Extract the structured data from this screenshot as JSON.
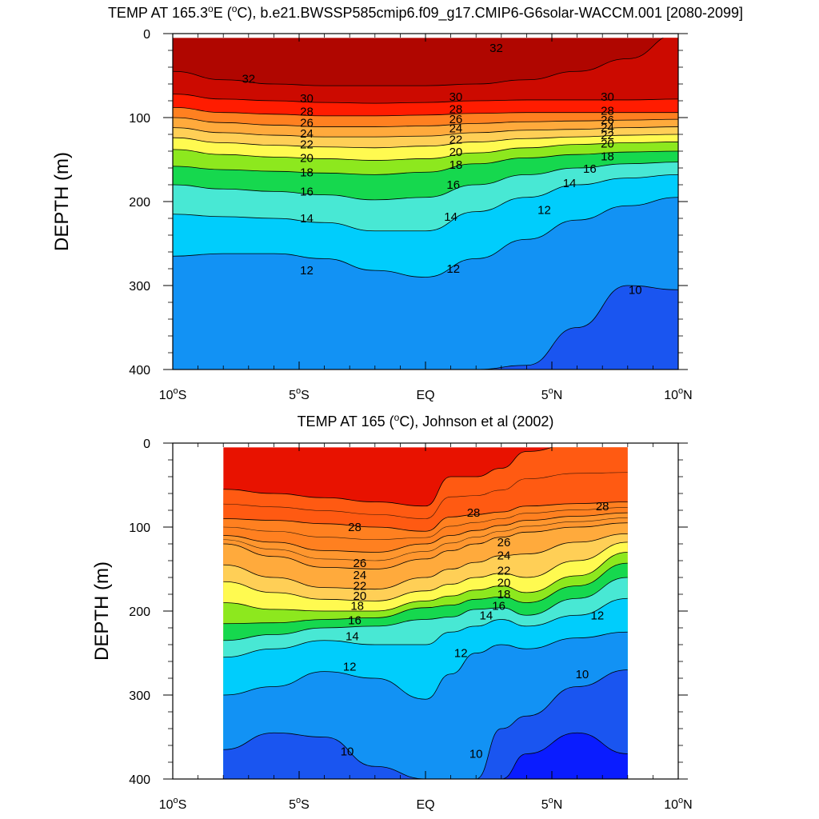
{
  "chart_data": [
    {
      "type": "contour",
      "title_prefix": "TEMP AT 165.3",
      "title_sup": "o",
      "title_suffix": "E (",
      "title_sup2": "o",
      "title_rest": "C), b.e21.BWSSP585cmip6.f09_g17.CMIP6-G6solar-WACCM.001 [2080-2099]",
      "ylabel": "DEPTH (m)",
      "xlabel": "",
      "x_ticks": [
        "10°S",
        "5°S",
        "EQ",
        "5°N",
        "10°N"
      ],
      "x_range": [
        -10,
        10
      ],
      "y_ticks": [
        "0",
        "100",
        "200",
        "300",
        "400"
      ],
      "y_range": [
        0,
        400
      ],
      "y_reversed": true,
      "data_x_range": [
        -10,
        10
      ],
      "data_y_range": [
        5,
        400
      ],
      "x": [
        -10,
        -8,
        -6,
        -4,
        -2,
        0,
        2,
        4,
        6,
        8,
        10
      ],
      "isotherms": [
        {
          "level": 32,
          "depth": [
            45,
            55,
            60,
            62,
            62,
            62,
            60,
            55,
            45,
            30,
            0
          ]
        },
        {
          "level": 30,
          "depth": [
            72,
            78,
            80,
            82,
            83,
            82,
            80,
            79,
            79,
            79,
            78
          ]
        },
        {
          "level": 28,
          "depth": [
            88,
            94,
            96,
            98,
            98,
            97,
            95,
            94,
            94,
            94,
            94
          ]
        },
        {
          "level": 26,
          "depth": [
            100,
            106,
            109,
            111,
            111,
            110,
            107,
            105,
            104,
            103,
            102
          ]
        },
        {
          "level": 24,
          "depth": [
            112,
            118,
            121,
            123,
            123,
            122,
            118,
            115,
            114,
            112,
            111
          ]
        },
        {
          "level": 22,
          "depth": [
            124,
            130,
            133,
            135,
            136,
            134,
            129,
            125,
            123,
            121,
            120
          ]
        },
        {
          "level": 20,
          "depth": [
            138,
            144,
            147,
            149,
            151,
            149,
            142,
            136,
            132,
            130,
            129
          ]
        },
        {
          "level": 18,
          "depth": [
            158,
            162,
            164,
            166,
            168,
            165,
            155,
            148,
            144,
            141,
            140
          ]
        },
        {
          "level": 16,
          "depth": [
            180,
            185,
            188,
            192,
            198,
            195,
            180,
            168,
            160,
            155,
            153
          ]
        },
        {
          "level": 14,
          "depth": [
            215,
            218,
            220,
            225,
            235,
            235,
            212,
            195,
            180,
            172,
            168
          ]
        },
        {
          "level": 12,
          "depth": [
            265,
            262,
            262,
            268,
            282,
            290,
            268,
            245,
            222,
            205,
            195
          ]
        },
        {
          "level": 10,
          "depth": [
            400,
            400,
            400,
            400,
            400,
            400,
            400,
            395,
            350,
            300,
            305
          ]
        }
      ],
      "contour_labels": [
        {
          "text": "32",
          "x": -7,
          "y": 54
        },
        {
          "text": "32",
          "x": 2.8,
          "y": 17
        },
        {
          "text": "30",
          "x": -4.7,
          "y": 77
        },
        {
          "text": "30",
          "x": 1.2,
          "y": 75
        },
        {
          "text": "30",
          "x": 7.2,
          "y": 75
        },
        {
          "text": "28",
          "x": -4.7,
          "y": 93
        },
        {
          "text": "28",
          "x": 1.2,
          "y": 90
        },
        {
          "text": "28",
          "x": 7.2,
          "y": 92
        },
        {
          "text": "26",
          "x": -4.7,
          "y": 106
        },
        {
          "text": "26",
          "x": 1.2,
          "y": 102
        },
        {
          "text": "26",
          "x": 7.2,
          "y": 103
        },
        {
          "text": "24",
          "x": -4.7,
          "y": 119
        },
        {
          "text": "24",
          "x": 1.2,
          "y": 113
        },
        {
          "text": "24",
          "x": 7.2,
          "y": 112
        },
        {
          "text": "22",
          "x": -4.7,
          "y": 132
        },
        {
          "text": "22",
          "x": 1.2,
          "y": 126
        },
        {
          "text": "22",
          "x": 7.2,
          "y": 121
        },
        {
          "text": "20",
          "x": -4.7,
          "y": 148
        },
        {
          "text": "20",
          "x": 1.2,
          "y": 141
        },
        {
          "text": "20",
          "x": 7.2,
          "y": 131
        },
        {
          "text": "18",
          "x": -4.7,
          "y": 165
        },
        {
          "text": "18",
          "x": 1.2,
          "y": 156
        },
        {
          "text": "18",
          "x": 7.2,
          "y": 146
        },
        {
          "text": "16",
          "x": -4.7,
          "y": 188
        },
        {
          "text": "16",
          "x": 1.1,
          "y": 180
        },
        {
          "text": "16",
          "x": 6.5,
          "y": 161
        },
        {
          "text": "14",
          "x": -4.7,
          "y": 220
        },
        {
          "text": "14",
          "x": 1.0,
          "y": 218
        },
        {
          "text": "14",
          "x": 5.7,
          "y": 178
        },
        {
          "text": "12",
          "x": -4.7,
          "y": 282
        },
        {
          "text": "12",
          "x": 1.1,
          "y": 280
        },
        {
          "text": "12",
          "x": 4.7,
          "y": 210
        },
        {
          "text": "10",
          "x": 8.3,
          "y": 305
        }
      ]
    },
    {
      "type": "contour",
      "title_prefix": "TEMP AT 165 (",
      "title_sup": "o",
      "title_rest": "C), Johnson et al (2002)",
      "ylabel": "DEPTH (m)",
      "xlabel": "",
      "x_ticks": [
        "10°S",
        "5°S",
        "EQ",
        "5°N",
        "10°N"
      ],
      "x_range": [
        -10,
        10
      ],
      "y_ticks": [
        "0",
        "100",
        "200",
        "300",
        "400"
      ],
      "y_range": [
        0,
        400
      ],
      "y_reversed": true,
      "data_x_range": [
        -8,
        8
      ],
      "data_y_range": [
        5,
        400
      ],
      "x": [
        -8,
        -6,
        -4,
        -2,
        0,
        1,
        2,
        3,
        4,
        6,
        8
      ],
      "isotherms": [
        {
          "level": 29,
          "depth": [
            55,
            60,
            65,
            70,
            75,
            40,
            40,
            30,
            10,
            0,
            0
          ]
        },
        {
          "level": 28,
          "depth": [
            90,
            92,
            96,
            100,
            105,
            88,
            85,
            82,
            75,
            72,
            70
          ]
        },
        {
          "level": 27,
          "depth": [
            110,
            118,
            128,
            130,
            120,
            110,
            104,
            98,
            92,
            87,
            83
          ]
        },
        {
          "level": 26,
          "depth": [
            120,
            135,
            148,
            150,
            138,
            128,
            120,
            112,
            106,
            100,
            95
          ]
        },
        {
          "level": 24,
          "depth": [
            145,
            160,
            172,
            174,
            160,
            150,
            142,
            134,
            132,
            118,
            108
          ]
        },
        {
          "level": 22,
          "depth": [
            165,
            178,
            186,
            188,
            176,
            168,
            160,
            155,
            160,
            140,
            118
          ]
        },
        {
          "level": 20,
          "depth": [
            190,
            198,
            200,
            200,
            188,
            182,
            175,
            170,
            178,
            158,
            130
          ]
        },
        {
          "level": 18,
          "depth": [
            215,
            214,
            210,
            208,
            196,
            193,
            186,
            183,
            190,
            170,
            143
          ]
        },
        {
          "level": 16,
          "depth": [
            235,
            228,
            220,
            218,
            210,
            207,
            198,
            196,
            205,
            185,
            160
          ]
        },
        {
          "level": 14,
          "depth": [
            255,
            245,
            235,
            240,
            240,
            225,
            218,
            210,
            218,
            205,
            185
          ]
        },
        {
          "level": 12,
          "depth": [
            300,
            290,
            272,
            280,
            305,
            275,
            250,
            240,
            245,
            232,
            225
          ]
        },
        {
          "level": 10,
          "depth": [
            365,
            345,
            350,
            385,
            400,
            400,
            400,
            340,
            325,
            290,
            270
          ]
        },
        {
          "level": 9,
          "depth": [
            400,
            400,
            400,
            400,
            400,
            400,
            400,
            400,
            370,
            345,
            370
          ]
        }
      ],
      "contour_labels": [
        {
          "text": "28",
          "x": -2.8,
          "y": 100
        },
        {
          "text": "28",
          "x": 1.9,
          "y": 83
        },
        {
          "text": "28",
          "x": 7.0,
          "y": 75
        },
        {
          "text": "26",
          "x": -2.6,
          "y": 143
        },
        {
          "text": "26",
          "x": 3.1,
          "y": 118
        },
        {
          "text": "24",
          "x": -2.6,
          "y": 157
        },
        {
          "text": "24",
          "x": 3.1,
          "y": 134
        },
        {
          "text": "22",
          "x": -2.6,
          "y": 170
        },
        {
          "text": "22",
          "x": 3.1,
          "y": 152
        },
        {
          "text": "20",
          "x": -2.6,
          "y": 182
        },
        {
          "text": "20",
          "x": 3.1,
          "y": 166
        },
        {
          "text": "18",
          "x": -2.7,
          "y": 194
        },
        {
          "text": "18",
          "x": 3.1,
          "y": 180
        },
        {
          "text": "16",
          "x": -2.8,
          "y": 211
        },
        {
          "text": "16",
          "x": 2.9,
          "y": 194
        },
        {
          "text": "14",
          "x": -2.9,
          "y": 230
        },
        {
          "text": "14",
          "x": 2.4,
          "y": 205
        },
        {
          "text": "12",
          "x": -3.0,
          "y": 266
        },
        {
          "text": "12",
          "x": 1.4,
          "y": 250
        },
        {
          "text": "12",
          "x": 6.8,
          "y": 205
        },
        {
          "text": "10",
          "x": -3.1,
          "y": 367
        },
        {
          "text": "10",
          "x": 2.0,
          "y": 370
        },
        {
          "text": "10",
          "x": 6.2,
          "y": 275
        }
      ]
    }
  ]
}
